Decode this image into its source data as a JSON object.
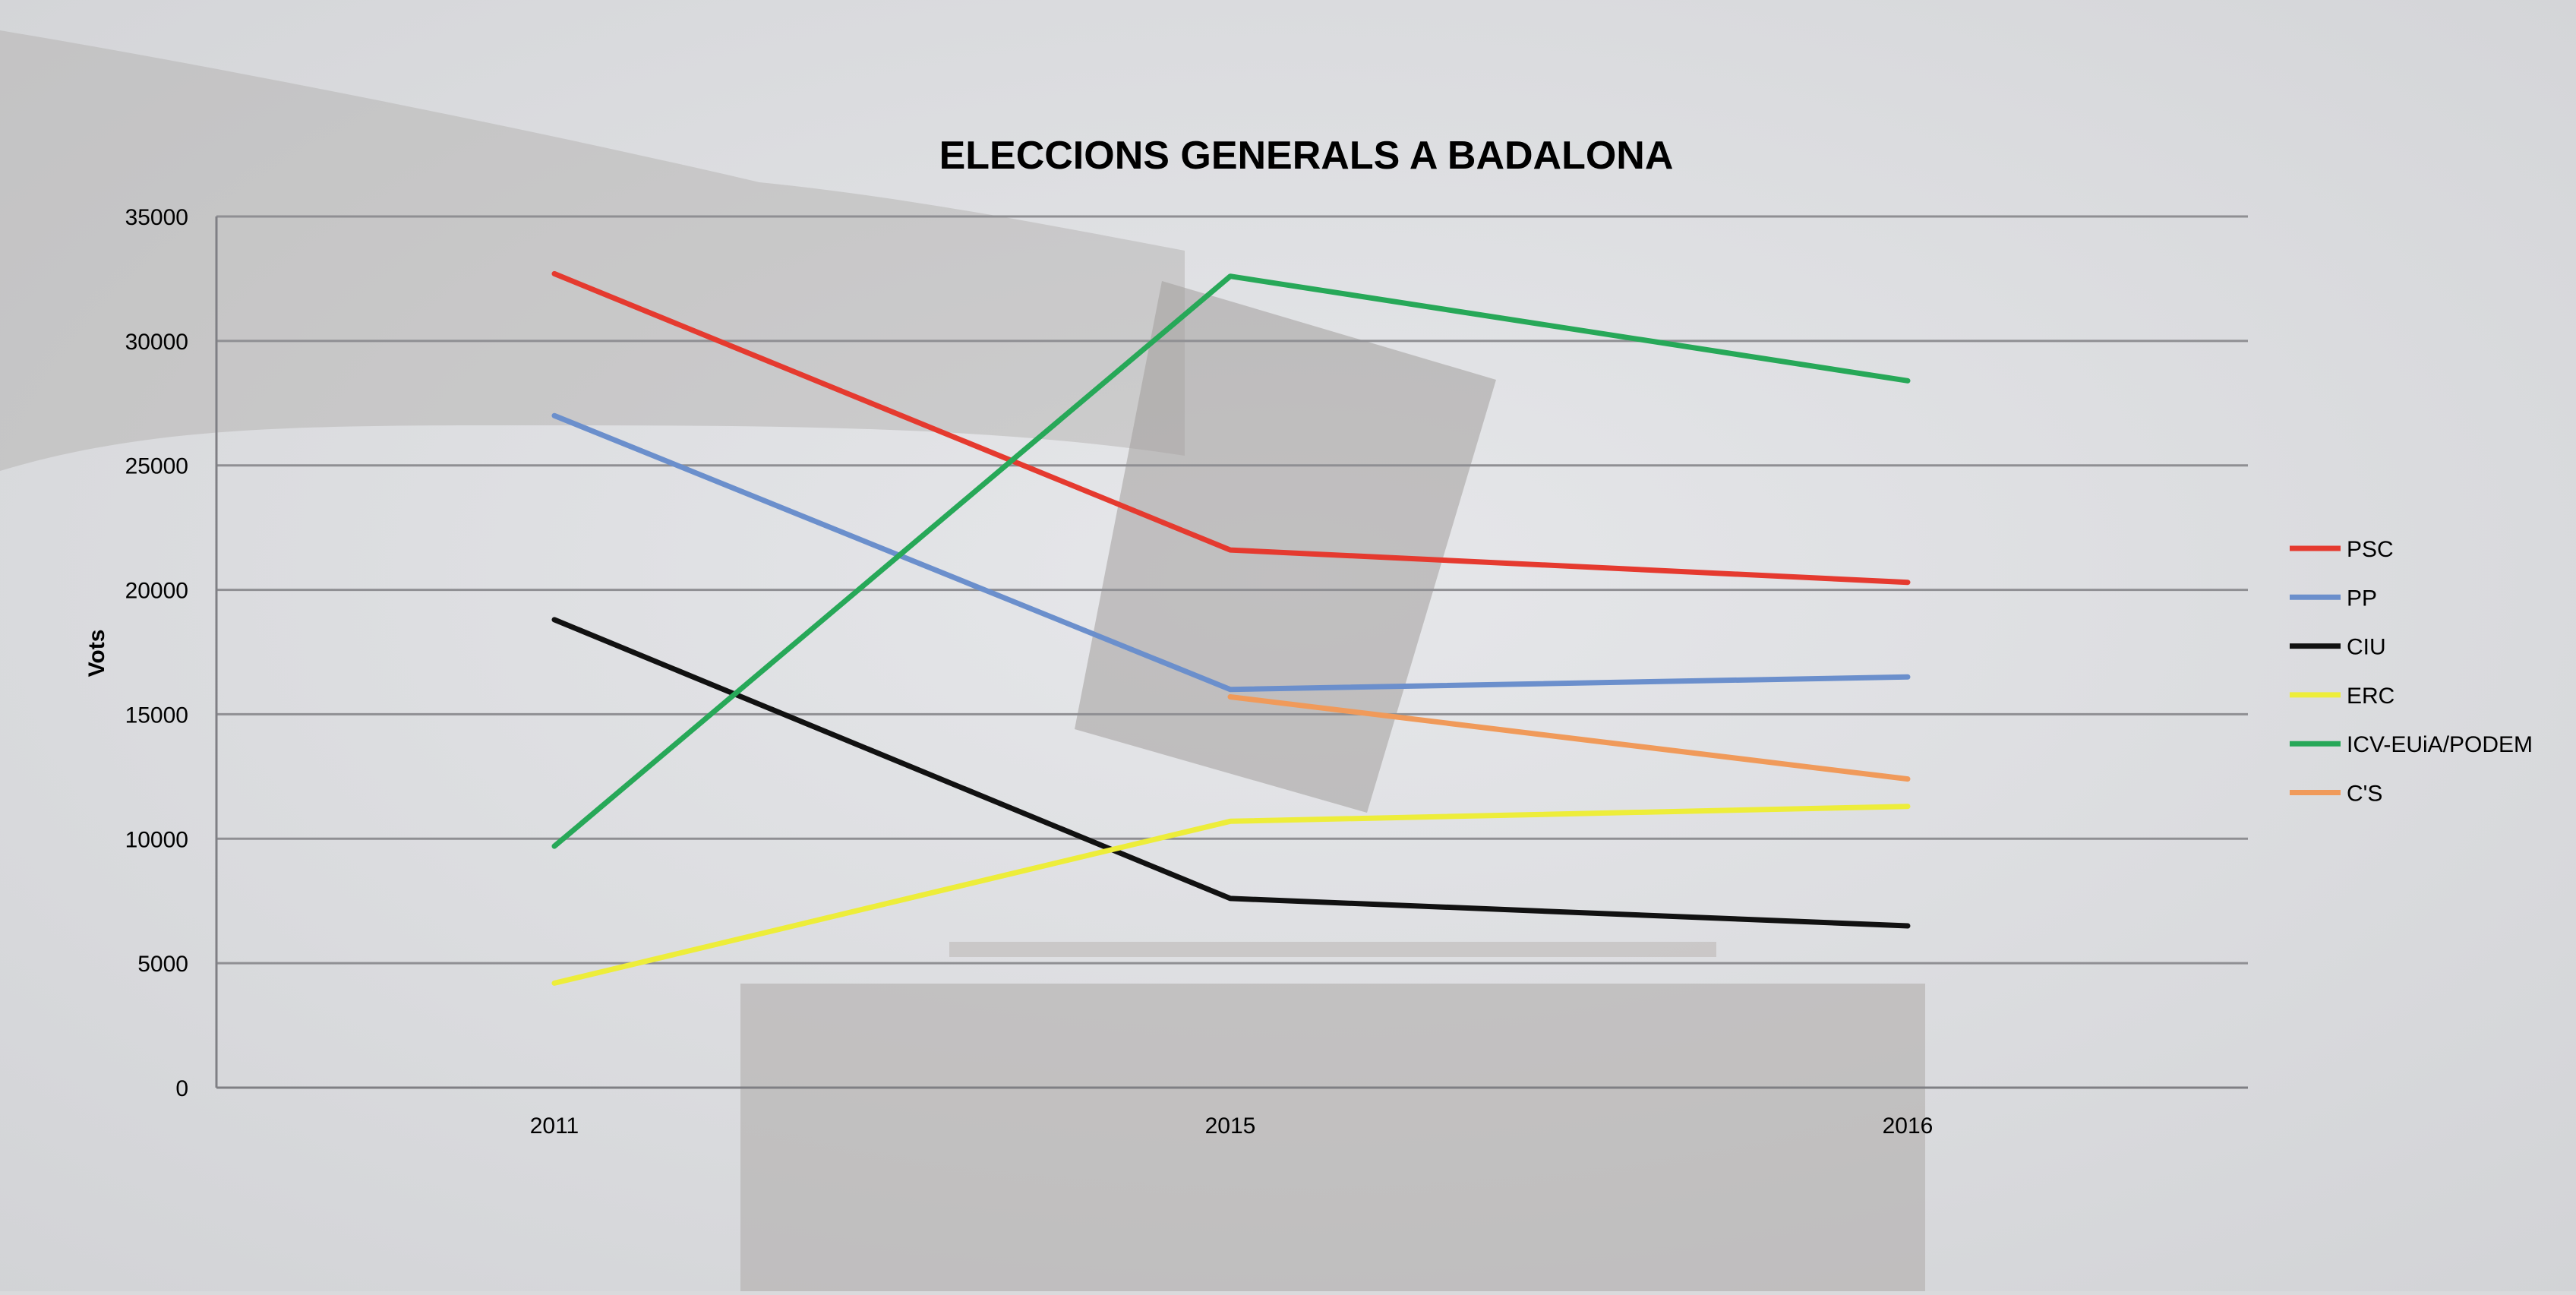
{
  "chart_data": {
    "type": "line",
    "title": "ELECCIONS GENERALS A BADALONA",
    "xlabel": "",
    "ylabel": "Vots",
    "categories": [
      "2011",
      "2015",
      "2016"
    ],
    "ylim": [
      0,
      35000
    ],
    "yticks": [
      0,
      5000,
      10000,
      15000,
      20000,
      25000,
      30000,
      35000
    ],
    "grid": true,
    "legend_position": "right",
    "series": [
      {
        "name": "PSC",
        "color": "#e53a2f",
        "values": [
          32700,
          21600,
          20300
        ]
      },
      {
        "name": "PP",
        "color": "#6b8fcc",
        "values": [
          27000,
          16000,
          16500
        ]
      },
      {
        "name": "CIU",
        "color": "#111111",
        "values": [
          18800,
          7600,
          6500
        ]
      },
      {
        "name": "ERC",
        "color": "#eded3a",
        "values": [
          4200,
          10700,
          11300
        ]
      },
      {
        "name": "ICV-EUiA/PODEM",
        "color": "#27a858",
        "values": [
          9700,
          32600,
          28400
        ]
      },
      {
        "name": "C'S",
        "color": "#f09a5a",
        "values": [
          null,
          15700,
          12400
        ]
      }
    ]
  }
}
